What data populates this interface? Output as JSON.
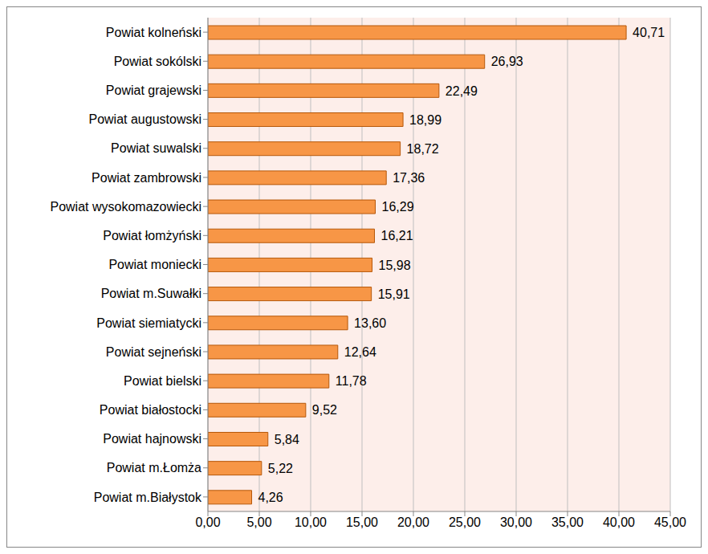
{
  "chart_data": {
    "type": "bar",
    "orientation": "horizontal",
    "categories": [
      "Powiat kolneński",
      "Powiat sokólski",
      "Powiat grajewski",
      "Powiat augustowski",
      "Powiat suwalski",
      "Powiat zambrowski",
      "Powiat wysokomazowiecki",
      "Powiat łomżyński",
      "Powiat moniecki",
      "Powiat m.Suwałki",
      "Powiat siemiatycki",
      "Powiat sejneński",
      "Powiat bielski",
      "Powiat białostocki",
      "Powiat hajnowski",
      "Powiat m.Łomża",
      "Powiat m.Białystok"
    ],
    "values": [
      40.71,
      26.93,
      22.49,
      18.99,
      18.72,
      17.36,
      16.29,
      16.21,
      15.98,
      15.91,
      13.6,
      12.64,
      11.78,
      9.52,
      5.84,
      5.22,
      4.26
    ],
    "value_labels": [
      "40,71",
      "26,93",
      "22,49",
      "18,99",
      "18,72",
      "17,36",
      "16,29",
      "16,21",
      "15,98",
      "15,91",
      "13,60",
      "12,64",
      "11,78",
      "9,52",
      "5,84",
      "5,22",
      "4,26"
    ],
    "data_labels": true,
    "color": "#f79646",
    "xlim": [
      0,
      45
    ],
    "xticks": [
      {
        "value": 0,
        "label": "0,00"
      },
      {
        "value": 5,
        "label": "5,00"
      },
      {
        "value": 10,
        "label": "10,00"
      },
      {
        "value": 15,
        "label": "15,00"
      },
      {
        "value": 20,
        "label": "20,00"
      },
      {
        "value": 25,
        "label": "25,00"
      },
      {
        "value": 30,
        "label": "30,00"
      },
      {
        "value": 35,
        "label": "35,00"
      },
      {
        "value": 40,
        "label": "40,00"
      },
      {
        "value": 45,
        "label": "45,00"
      }
    ],
    "grid": true
  }
}
